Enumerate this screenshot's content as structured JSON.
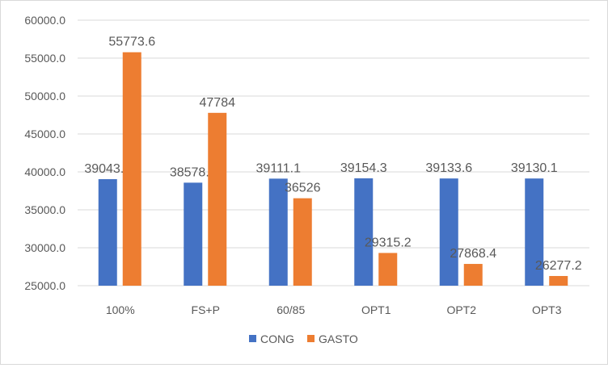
{
  "chart_data": {
    "type": "bar",
    "title": "",
    "xlabel": "",
    "ylabel": "",
    "categories": [
      "100%",
      "FS+P",
      "60/85",
      "OPT1",
      "OPT2",
      "OPT3"
    ],
    "series": [
      {
        "name": "CONG",
        "color": "#4472c4",
        "values": [
          39043.0,
          38578.9,
          39111.1,
          39154.3,
          39133.6,
          39130.1
        ],
        "labels": [
          "39043.0",
          "38578.9",
          "39111.1",
          "39154.3",
          "39133.6",
          "39130.1"
        ]
      },
      {
        "name": "GASTO",
        "color": "#ed7d31",
        "values": [
          55773.6,
          47784,
          36526,
          29315.2,
          27868.4,
          26277.2
        ],
        "labels": [
          "55773.6",
          "47784",
          "36526",
          "29315.2",
          "27868.4",
          "26277.2"
        ]
      }
    ],
    "ylim": [
      25000,
      60000
    ],
    "yticks": [
      25000,
      30000,
      35000,
      40000,
      45000,
      50000,
      55000,
      60000
    ],
    "ytick_labels": [
      "25000.0",
      "30000.0",
      "35000.0",
      "40000.0",
      "45000.0",
      "50000.0",
      "55000.0",
      "60000.0"
    ],
    "grid": true,
    "legend": "bottom"
  }
}
